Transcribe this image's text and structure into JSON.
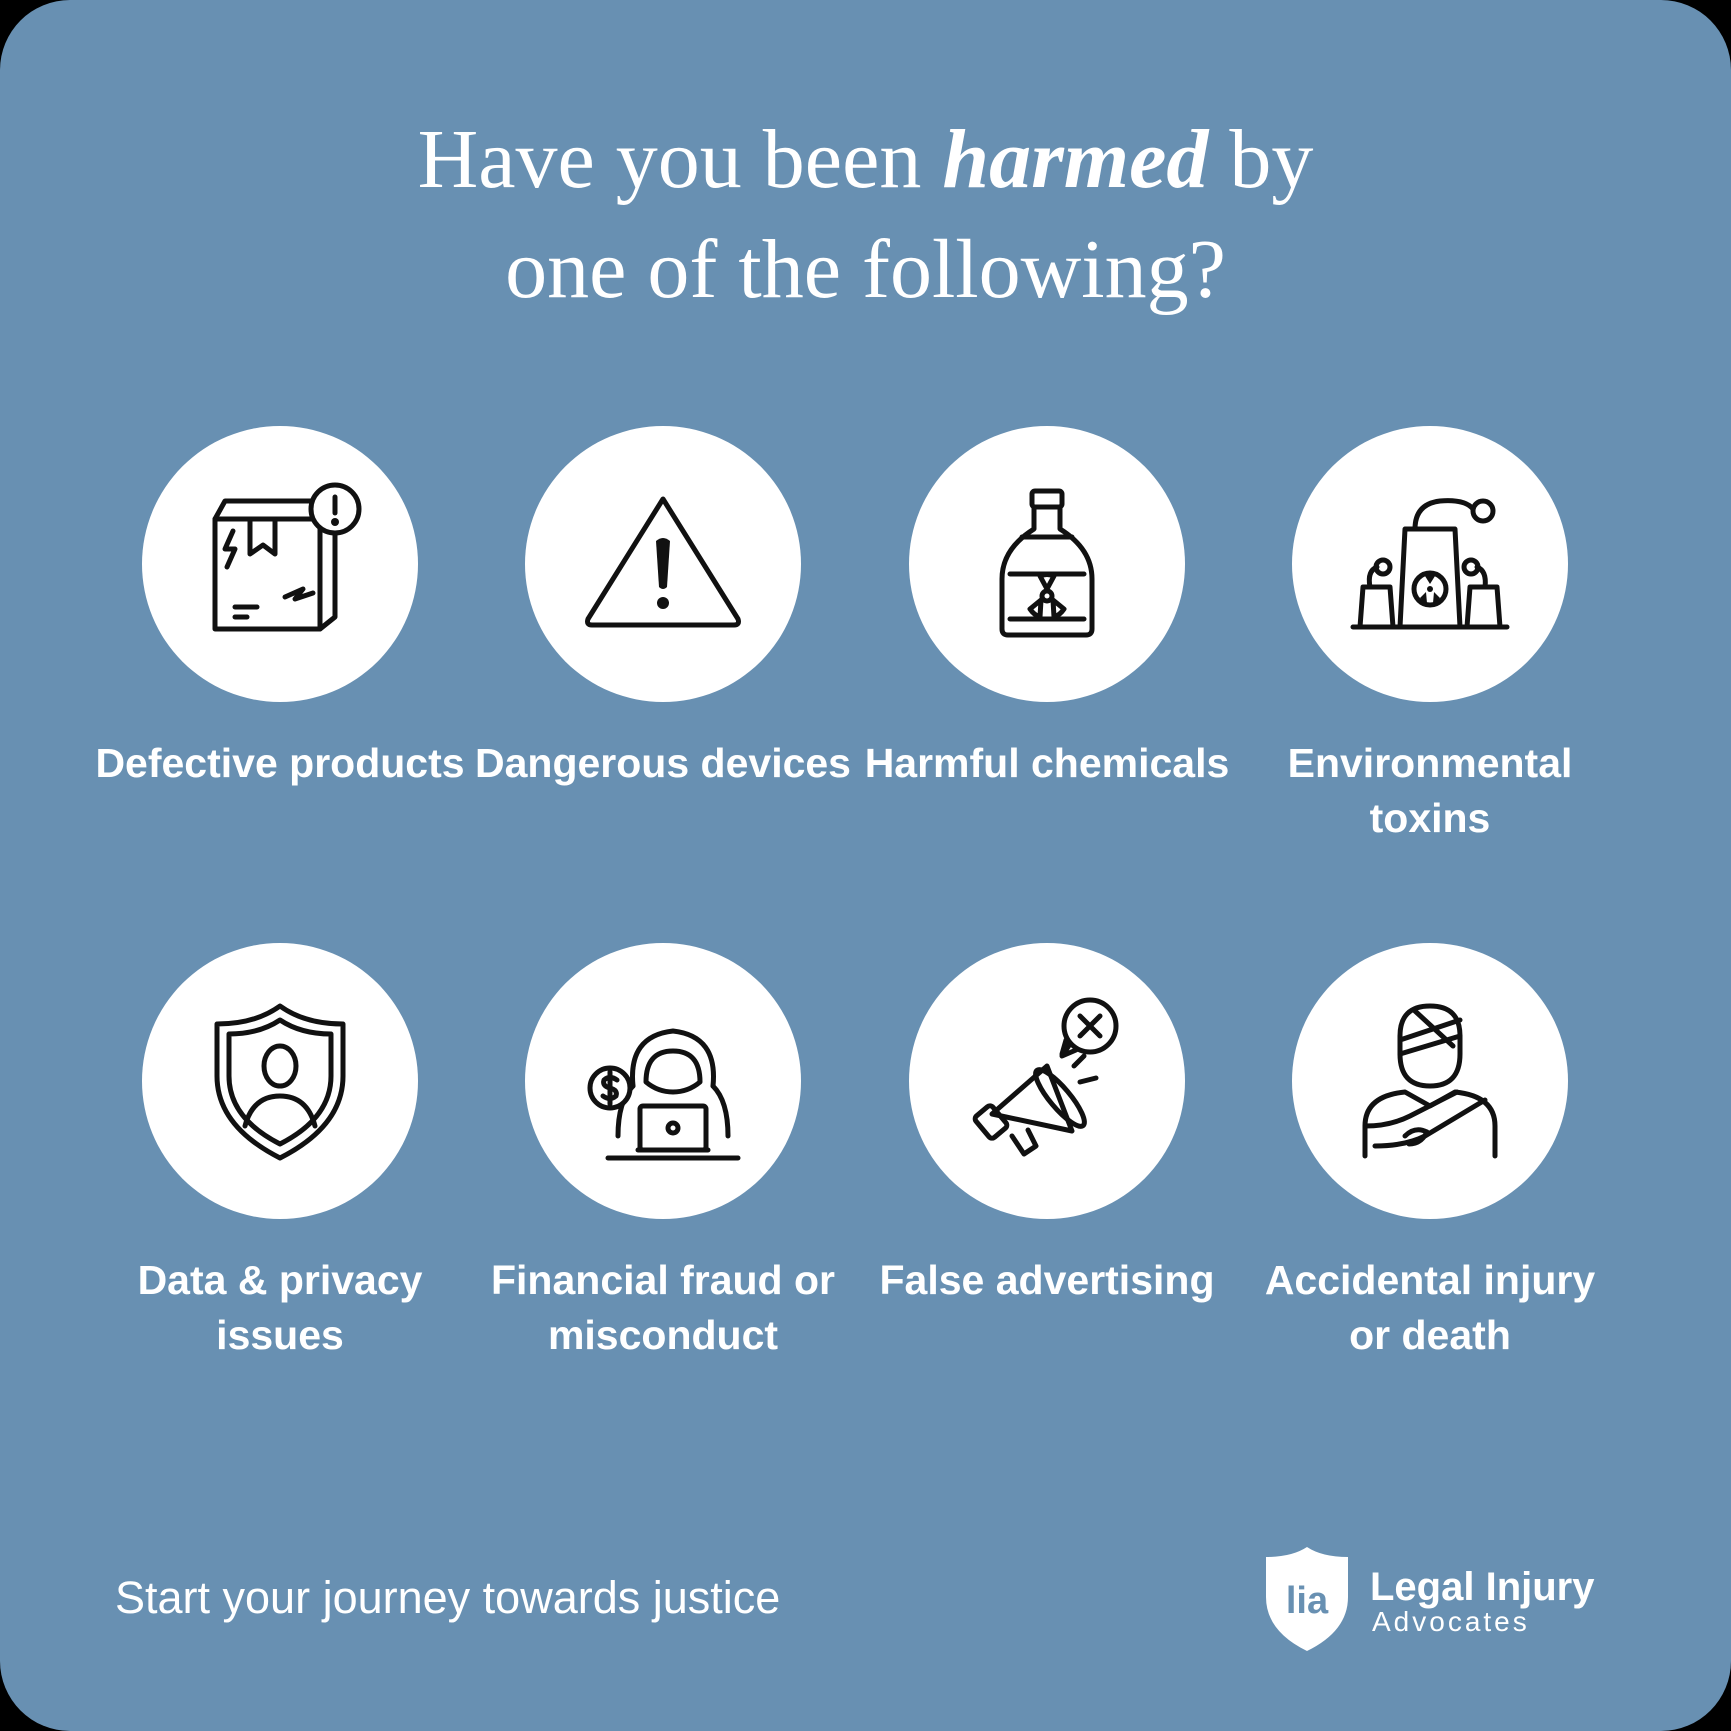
{
  "headline": {
    "line1_before": "Have you been ",
    "line1_emphasis": "harmed",
    "line1_after": " by",
    "line2": "one of the following?"
  },
  "items": [
    {
      "label": "Defective products",
      "icon": "damaged-box-icon"
    },
    {
      "label": "Dangerous devices",
      "icon": "warning-triangle-icon"
    },
    {
      "label": "Harmful chemicals",
      "icon": "toxic-bottle-icon"
    },
    {
      "label": "Environmental toxins",
      "icon": "nuclear-plant-icon"
    },
    {
      "label": "Data & privacy issues",
      "icon": "privacy-shield-icon"
    },
    {
      "label": "Financial fraud or misconduct",
      "icon": "hacker-laptop-icon"
    },
    {
      "label": "False advertising",
      "icon": "megaphone-x-icon"
    },
    {
      "label": "Accidental injury or death",
      "icon": "injured-person-icon"
    }
  ],
  "footer": {
    "tagline": "Start your journey towards justice",
    "logo_mark": "lia",
    "brand_line1": "Legal Injury",
    "brand_line2": "Advocates"
  },
  "colors": {
    "background": "#6890b2",
    "circle": "#ffffff",
    "icon_stroke": "#111111",
    "text": "#ffffff"
  }
}
